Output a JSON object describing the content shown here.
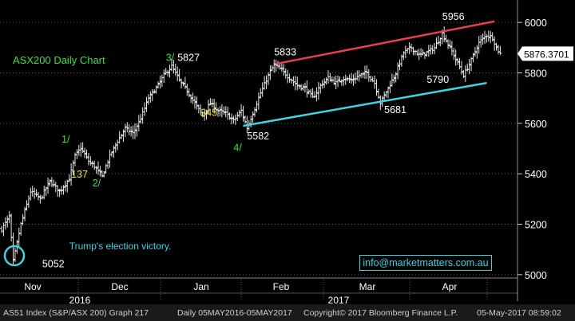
{
  "chart_data": {
    "type": "ohlc",
    "title": "ASX200 Daily Chart",
    "ylim": [
      4990,
      6070
    ],
    "y_ticks": [
      5000,
      5200,
      5400,
      5600,
      5800,
      6000
    ],
    "x_months": [
      "Nov",
      "Dec",
      "Jan",
      "Feb",
      "Mar",
      "Apr"
    ],
    "x_years": [
      "2016",
      "2017"
    ],
    "last_price": "5876.3701",
    "price_path": [
      [
        0,
        5180
      ],
      [
        4,
        5230
      ],
      [
        6,
        5052
      ],
      [
        10,
        5200
      ],
      [
        15,
        5330
      ],
      [
        20,
        5300
      ],
      [
        25,
        5370
      ],
      [
        30,
        5330
      ],
      [
        35,
        5380
      ],
      [
        38,
        5470
      ],
      [
        41,
        5502
      ],
      [
        45,
        5450
      ],
      [
        48,
        5430
      ],
      [
        52,
        5390
      ],
      [
        56,
        5470
      ],
      [
        60,
        5530
      ],
      [
        64,
        5580
      ],
      [
        68,
        5560
      ],
      [
        72,
        5620
      ],
      [
        76,
        5700
      ],
      [
        80,
        5740
      ],
      [
        84,
        5790
      ],
      [
        88,
        5827
      ],
      [
        92,
        5770
      ],
      [
        96,
        5730
      ],
      [
        100,
        5680
      ],
      [
        104,
        5630
      ],
      [
        108,
        5680
      ],
      [
        112,
        5650
      ],
      [
        116,
        5640
      ],
      [
        120,
        5610
      ],
      [
        124,
        5650
      ],
      [
        127,
        5582
      ],
      [
        130,
        5640
      ],
      [
        134,
        5720
      ],
      [
        138,
        5790
      ],
      [
        141,
        5833
      ],
      [
        145,
        5810
      ],
      [
        149,
        5780
      ],
      [
        153,
        5750
      ],
      [
        157,
        5740
      ],
      [
        161,
        5700
      ],
      [
        165,
        5750
      ],
      [
        169,
        5780
      ],
      [
        173,
        5760
      ],
      [
        177,
        5780
      ],
      [
        181,
        5770
      ],
      [
        185,
        5790
      ],
      [
        189,
        5800
      ],
      [
        193,
        5760
      ],
      [
        196,
        5681
      ],
      [
        200,
        5740
      ],
      [
        204,
        5800
      ],
      [
        208,
        5880
      ],
      [
        212,
        5900
      ],
      [
        216,
        5870
      ],
      [
        220,
        5880
      ],
      [
        224,
        5900
      ],
      [
        228,
        5956
      ],
      [
        232,
        5900
      ],
      [
        236,
        5840
      ],
      [
        239,
        5790
      ],
      [
        243,
        5850
      ],
      [
        247,
        5920
      ],
      [
        251,
        5950
      ],
      [
        254,
        5940
      ],
      [
        256,
        5900
      ],
      [
        258,
        5876
      ]
    ],
    "trend_lines": [
      {
        "name": "resistance",
        "color": "#e8404a",
        "from": [
          142,
          5836
        ],
        "to": [
          255,
          6004
        ]
      },
      {
        "name": "support",
        "color": "#3fd3e0",
        "from": [
          125,
          5590
        ],
        "to": [
          251,
          5760
        ]
      }
    ],
    "annotations": [
      {
        "text": "5956",
        "x": 228,
        "y": 6010,
        "color": "#ffffff"
      },
      {
        "text": "5833",
        "x": 141,
        "y": 5870,
        "color": "#ffffff"
      },
      {
        "text": "5827",
        "x": 91,
        "y": 5847,
        "color": "#ffffff"
      },
      {
        "text": "3/",
        "x": 85,
        "y": 5847,
        "color": "#44dd44"
      },
      {
        "text": "245",
        "x": 103,
        "y": 5630,
        "color": "#f5e23c"
      },
      {
        "text": "5582",
        "x": 127,
        "y": 5537,
        "color": "#ffffff"
      },
      {
        "text": "4/",
        "x": 120,
        "y": 5490,
        "color": "#44dd44"
      },
      {
        "text": "1/",
        "x": 31,
        "y": 5524,
        "color": "#44dd44"
      },
      {
        "text": "137",
        "x": 36,
        "y": 5385,
        "color": "#f5e23c"
      },
      {
        "text": "2/",
        "x": 47,
        "y": 5350,
        "color": "#44dd44"
      },
      {
        "text": "5681",
        "x": 198,
        "y": 5640,
        "color": "#ffffff"
      },
      {
        "text": "5790",
        "x": 220,
        "y": 5760,
        "color": "#ffffff"
      },
      {
        "text": "5052",
        "x": 21,
        "y": 5030,
        "color": "#ffffff"
      },
      {
        "text": "Trump's election victory.",
        "x": 35,
        "y": 5100,
        "color": "#3fd3e0"
      }
    ]
  },
  "footer": {
    "left": "AS51 Index (S&P/ASX 200) Graph 217",
    "middle": "Daily 05MAY2016-05MAY2017",
    "copyright": "Copyright© 2017 Bloomberg Finance L.P.",
    "timestamp": "05-May-2017 08:59:02"
  },
  "watermark": "info@marketmatters.com.au",
  "colors": {
    "bars": "#e8e8e8",
    "axis_text": "#ffffff",
    "grid": "#5a5a5a",
    "title": "#44dd44",
    "trump": "#3fd3e0"
  }
}
